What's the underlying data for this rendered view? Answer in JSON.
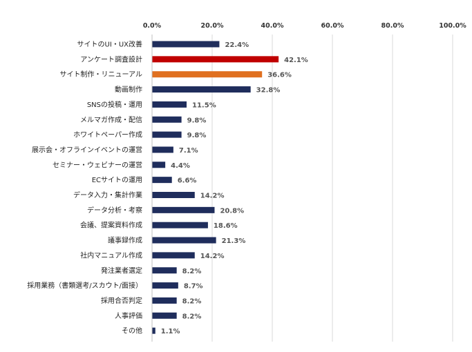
{
  "chart_data": {
    "type": "bar",
    "orientation": "horizontal",
    "xlim": [
      0,
      100
    ],
    "ticks": [
      "0.0%",
      "20.0%",
      "40.0%",
      "60.0%",
      "80.0%",
      "100.0%"
    ],
    "tick_values": [
      0,
      20,
      40,
      60,
      80,
      100
    ],
    "tick_position": "top",
    "grid": true,
    "legend": false,
    "categories": [
      "サイトのUI・UX改善",
      "アンケート調査設計",
      "サイト制作・リニューアル",
      "動画制作",
      "SNSの投稿・運用",
      "メルマガ作成・配信",
      "ホワイトペーパー作成",
      "展示会・オフラインイベントの運営",
      "セミナー・ウェビナーの運営",
      "ECサイトの運用",
      "データ入力・集計作業",
      "データ分析・考察",
      "会議、提案資料作成",
      "議事録作成",
      "社内マニュアル作成",
      "発注業者選定",
      "採用業務（書類選考/スカウト/面接）",
      "採用合否判定",
      "人事評価",
      "その他"
    ],
    "values": [
      22.4,
      42.1,
      36.6,
      32.8,
      11.5,
      9.8,
      9.8,
      7.1,
      4.4,
      6.6,
      14.2,
      20.8,
      18.6,
      21.3,
      14.2,
      8.2,
      8.7,
      8.2,
      8.2,
      1.1
    ],
    "value_labels": [
      "22.4%",
      "42.1%",
      "36.6%",
      "32.8%",
      "11.5%",
      "9.8%",
      "9.8%",
      "7.1%",
      "4.4%",
      "6.6%",
      "14.2%",
      "20.8%",
      "18.6%",
      "21.3%",
      "14.2%",
      "8.2%",
      "8.7%",
      "8.2%",
      "8.2%",
      "1.1%"
    ],
    "colors": {
      "default": "#1f2d5c",
      "highlight_1": "#c00000",
      "highlight_2": "#e07020"
    },
    "bar_colors": [
      "default",
      "highlight_1",
      "highlight_2",
      "default",
      "default",
      "default",
      "default",
      "default",
      "default",
      "default",
      "default",
      "default",
      "default",
      "default",
      "default",
      "default",
      "default",
      "default",
      "default",
      "default"
    ]
  }
}
